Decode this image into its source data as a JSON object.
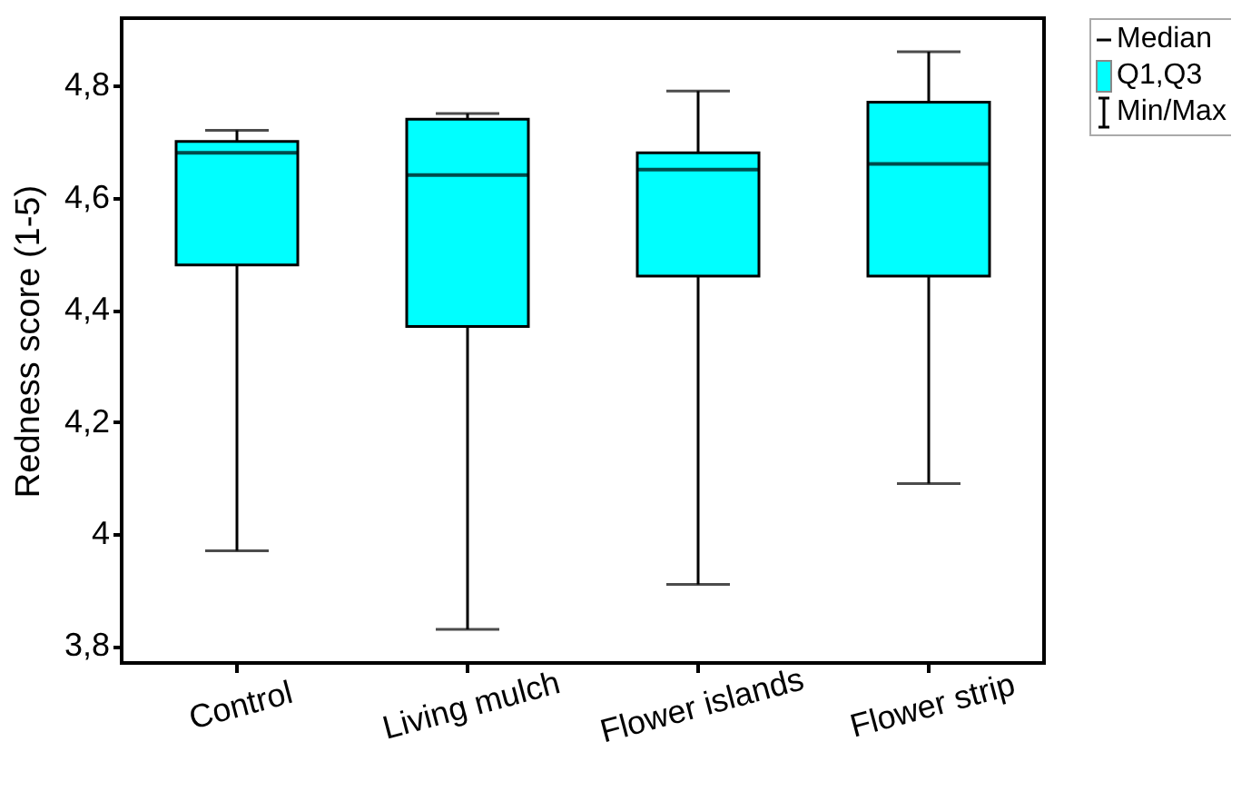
{
  "chart_data": {
    "type": "box",
    "ylabel": "Redness score (1-5)",
    "categories": [
      "Control",
      "Living mulch",
      "Flower islands",
      "Flower strip"
    ],
    "series": [
      {
        "color": "#00ffff",
        "boxes": [
          {
            "low": 3.97,
            "q1": 4.48,
            "median": 4.68,
            "q3": 4.7,
            "high": 4.72
          },
          {
            "low": 3.83,
            "q1": 4.37,
            "median": 4.64,
            "q3": 4.74,
            "high": 4.75
          },
          {
            "low": 3.91,
            "q1": 4.46,
            "median": 4.65,
            "q3": 4.68,
            "high": 4.79
          },
          {
            "low": 4.09,
            "q1": 4.46,
            "median": 4.66,
            "q3": 4.77,
            "high": 4.86
          }
        ]
      }
    ],
    "annotations": [
      "Median",
      "Q1,Q3",
      "Min/Max"
    ],
    "ylim": [
      3.77,
      4.92
    ],
    "yticks": [
      {
        "value": 3.8,
        "label": "3,8"
      },
      {
        "value": 4,
        "label": "4"
      },
      {
        "value": 4.2,
        "label": "4,2"
      },
      {
        "value": 4.4,
        "label": "4,4"
      },
      {
        "value": 4.6,
        "label": "4,6"
      },
      {
        "value": 4.8,
        "label": "4,8"
      }
    ],
    "grid": false
  }
}
